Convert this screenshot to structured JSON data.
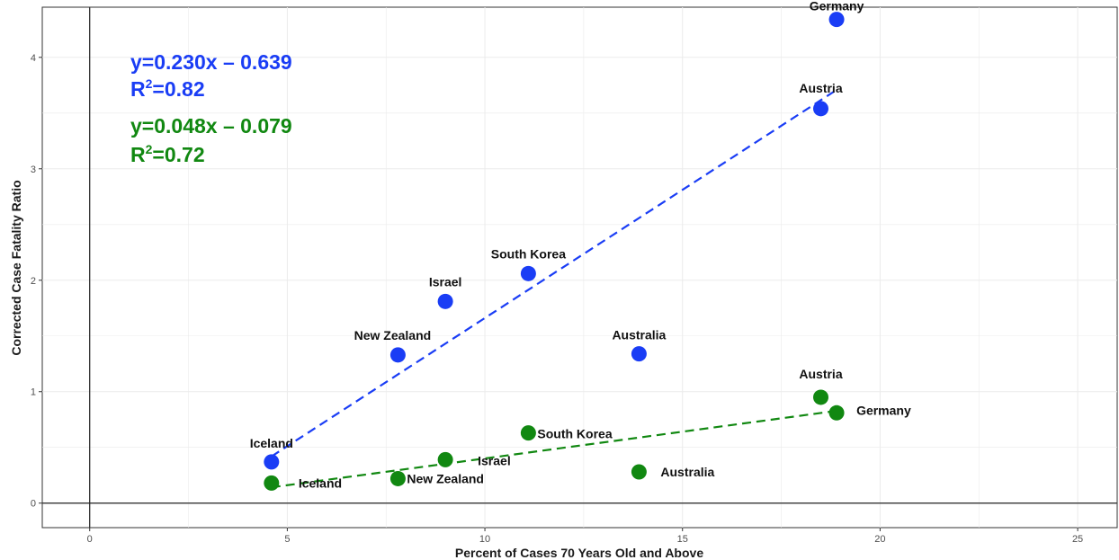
{
  "chart_data": {
    "type": "scatter",
    "xlabel": "Percent of Cases 70 Years Old and Above",
    "ylabel": "Corrected Case Fatality Ratio",
    "xlim": [
      -1.2,
      26
    ],
    "ylim": [
      -0.22,
      4.45
    ],
    "xticks": [
      0,
      5,
      10,
      15,
      20,
      25
    ],
    "yticks": [
      0,
      1,
      2,
      3,
      4
    ],
    "grid": true,
    "reference_lines": {
      "x": 0,
      "y": 0
    },
    "series": [
      {
        "color": "#1a3df5",
        "points": [
          {
            "label": "Iceland",
            "x": 4.6,
            "y": 0.37
          },
          {
            "label": "New Zealand",
            "x": 7.8,
            "y": 1.33
          },
          {
            "label": "Israel",
            "x": 9.0,
            "y": 1.81
          },
          {
            "label": "South Korea",
            "x": 11.1,
            "y": 2.06
          },
          {
            "label": "Australia",
            "x": 13.9,
            "y": 1.34
          },
          {
            "label": "Austria",
            "x": 18.5,
            "y": 3.54
          },
          {
            "label": "Germany",
            "x": 18.9,
            "y": 4.34
          }
        ],
        "fit": {
          "slope": 0.23,
          "intercept": -0.639,
          "x_range": [
            4.6,
            18.9
          ]
        },
        "equation": {
          "line1": "y=0.230x – 0.639",
          "r2_prefix": "R",
          "r2_sup": "2",
          "r2_rest": "=0.82"
        }
      },
      {
        "color": "#118811",
        "points": [
          {
            "label": "Iceland",
            "x": 4.6,
            "y": 0.18
          },
          {
            "label": "New Zealand",
            "x": 7.8,
            "y": 0.22
          },
          {
            "label": "Israel",
            "x": 9.0,
            "y": 0.39
          },
          {
            "label": "South Korea",
            "x": 11.1,
            "y": 0.63
          },
          {
            "label": "Australia",
            "x": 13.9,
            "y": 0.28
          },
          {
            "label": "Austria",
            "x": 18.5,
            "y": 0.95
          },
          {
            "label": "Germany",
            "x": 18.9,
            "y": 0.81
          }
        ],
        "fit": {
          "slope": 0.048,
          "intercept": -0.079,
          "x_range": [
            4.6,
            18.9
          ]
        },
        "equation": {
          "line1": "y=0.048x – 0.079",
          "r2_prefix": "R",
          "r2_sup": "2",
          "r2_rest": "=0.72"
        }
      }
    ]
  }
}
